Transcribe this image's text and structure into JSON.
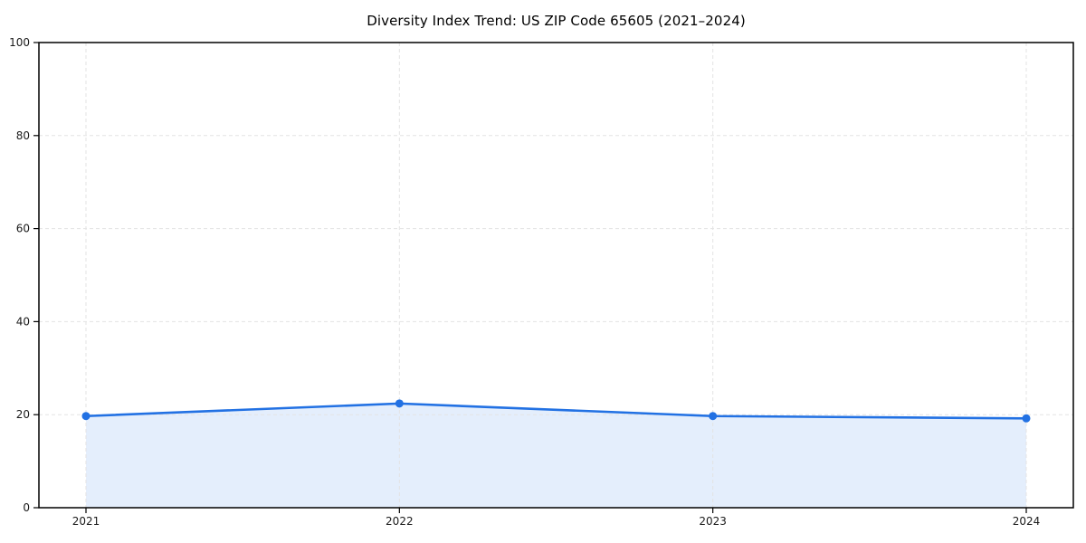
{
  "chart_data": {
    "type": "line",
    "title": "Diversity Index Trend: US ZIP Code 65605 (2021–2024)",
    "x": [
      "2021",
      "2022",
      "2023",
      "2024"
    ],
    "series": [
      {
        "name": "Diversity Index",
        "values": [
          19.7,
          22.4,
          19.7,
          19.2
        ]
      }
    ],
    "xlabel": "",
    "ylabel": "",
    "ylim": [
      0,
      100
    ],
    "yticks": [
      0,
      20,
      40,
      60,
      80,
      100
    ],
    "grid": true,
    "grid_style": "dashed",
    "legend_position": "none",
    "area_fill": true,
    "marker": "circle",
    "colors": {
      "line": "#2271e3",
      "marker": "#2271e3",
      "area": "#2271e3",
      "area_opacity": 0.12,
      "grid": "#e3e3e3",
      "axis": "#000000",
      "text": "#1a1a1a",
      "background": "#ffffff"
    }
  }
}
